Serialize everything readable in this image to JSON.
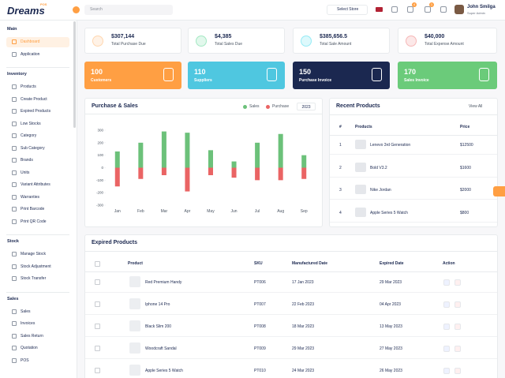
{
  "header": {
    "logo": "Dreams",
    "logo_tag": "POS",
    "search": "Search",
    "store": "Select Store",
    "notifications": [
      "4",
      "1"
    ],
    "user_name": "John Smilga",
    "user_role": "Super Admin"
  },
  "sidebar": [
    {
      "title": "Main",
      "items": [
        "Dashboard",
        "Application"
      ]
    },
    {
      "title": "Inventory",
      "items": [
        "Products",
        "Create Product",
        "Expired Products",
        "Low Stocks",
        "Category",
        "Sub Category",
        "Brands",
        "Units",
        "Variant Attributes",
        "Warranties",
        "Print Barcode",
        "Print QR Code"
      ]
    },
    {
      "title": "Stock",
      "items": [
        "Manage Stock",
        "Stock Adjustment",
        "Stock Transfer"
      ]
    },
    {
      "title": "Sales",
      "items": [
        "Sales",
        "Invoices",
        "Sales Return",
        "Quotation",
        "POS"
      ]
    }
  ],
  "stats": [
    {
      "value": "$307,144",
      "label": "Total Purchase Due"
    },
    {
      "value": "$4,385",
      "label": "Total Sales Due"
    },
    {
      "value": "$385,656.5",
      "label": "Total Sale Amount"
    },
    {
      "value": "$40,000",
      "label": "Total Expense Amount"
    }
  ],
  "counts": [
    {
      "value": "100",
      "label": "Customers"
    },
    {
      "value": "110",
      "label": "Suppliers"
    },
    {
      "value": "150",
      "label": "Purchase Invoice"
    },
    {
      "value": "170",
      "label": "Sales Invoice"
    }
  ],
  "chart_data": {
    "type": "bar",
    "title": "Purchase & Sales",
    "year_filter": "2023",
    "categories": [
      "Jan",
      "Feb",
      "Mar",
      "Apr",
      "May",
      "Jun",
      "Jul",
      "Aug",
      "Sep"
    ],
    "series": [
      {
        "name": "Sales",
        "color": "#6cc17a",
        "values": [
          130,
          200,
          290,
          280,
          140,
          50,
          200,
          270,
          100
        ]
      },
      {
        "name": "Purchase",
        "color": "#ea6464",
        "values": [
          -150,
          -90,
          -60,
          -190,
          -60,
          -80,
          -100,
          -100,
          -90
        ]
      }
    ],
    "ylim": [
      -300,
      300
    ],
    "yticks": [
      300,
      200,
      100,
      0,
      -100,
      -200,
      -300
    ]
  },
  "recent_products": {
    "title": "Recent Products",
    "link": "View All",
    "columns": [
      "#",
      "Products",
      "Price"
    ],
    "rows": [
      [
        "1",
        "Lenevo 3rd Generation",
        "$12500"
      ],
      [
        "2",
        "Bold V3.2",
        "$1600"
      ],
      [
        "3",
        "Nike Jordan",
        "$2000"
      ],
      [
        "4",
        "Apple Series 5 Watch",
        "$800"
      ]
    ]
  },
  "expired_products": {
    "title": "Expired Products",
    "columns": [
      "Product",
      "SKU",
      "Manufactured Date",
      "Expired Date",
      "Action"
    ],
    "rows": [
      [
        "Red Premium Handy",
        "PT006",
        "17 Jan 2023",
        "29 Mar 2023"
      ],
      [
        "Iphone 14 Pro",
        "PT007",
        "22 Feb 2023",
        "04 Apr 2023"
      ],
      [
        "Black Slim 200",
        "PT008",
        "18 Mar 2023",
        "13 May 2023"
      ],
      [
        "Woodcraft Sandal",
        "PT009",
        "29 Mar 2023",
        "27 May 2023"
      ],
      [
        "Apple Series 5 Watch",
        "PT010",
        "24 Mar 2023",
        "26 May 2023"
      ]
    ]
  }
}
